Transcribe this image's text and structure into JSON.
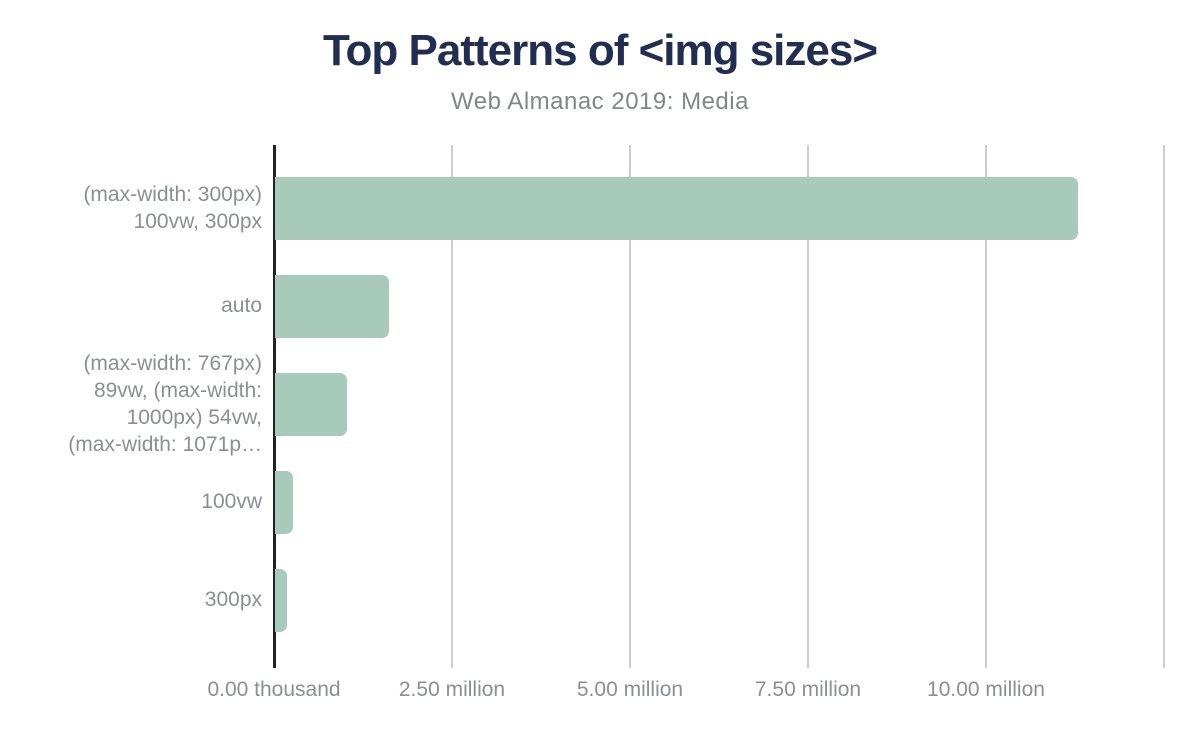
{
  "header": {
    "title": "Top Patterns of <img sizes>",
    "subtitle": "Web Almanac 2019: Media"
  },
  "colors": {
    "bar": "#a8caba",
    "title": "#212e51",
    "subtitle": "#82868a",
    "axis_labels": "#8b8f93",
    "gridline": "#cdcdcd",
    "axis_line": "#222222",
    "background": "#ffffff"
  },
  "chart_data": {
    "type": "bar",
    "orientation": "horizontal",
    "title": "Top Patterns of <img sizes>",
    "subtitle": "Web Almanac 2019: Media",
    "categories": [
      "(max-width: 300px) 100vw, 300px",
      "auto",
      "(max-width: 767px) 89vw, (max-width: 1000px) 54vw, (max-width: 1071p…",
      "100vw",
      "300px"
    ],
    "category_display_lines": [
      [
        "(max-width: 300px)",
        "100vw, 300px"
      ],
      [
        "auto"
      ],
      [
        "(max-width: 767px)",
        "89vw, (max-width:",
        "1000px) 54vw,",
        "(max-width: 1071p…"
      ],
      [
        "100vw"
      ],
      [
        "300px"
      ]
    ],
    "values": [
      11280000,
      1600000,
      1010000,
      250000,
      170000
    ],
    "xlim": [
      0,
      12500000
    ],
    "x_ticks": [
      {
        "value": 0,
        "label": "0.00 thousand"
      },
      {
        "value": 2500000,
        "label": "2.50 million"
      },
      {
        "value": 5000000,
        "label": "5.00 million"
      },
      {
        "value": 7500000,
        "label": "7.50 million"
      },
      {
        "value": 10000000,
        "label": "10.00 million"
      },
      {
        "value": 12500000,
        "label": ""
      }
    ],
    "grid": true,
    "legend": false,
    "bar_color": "#a8caba"
  }
}
